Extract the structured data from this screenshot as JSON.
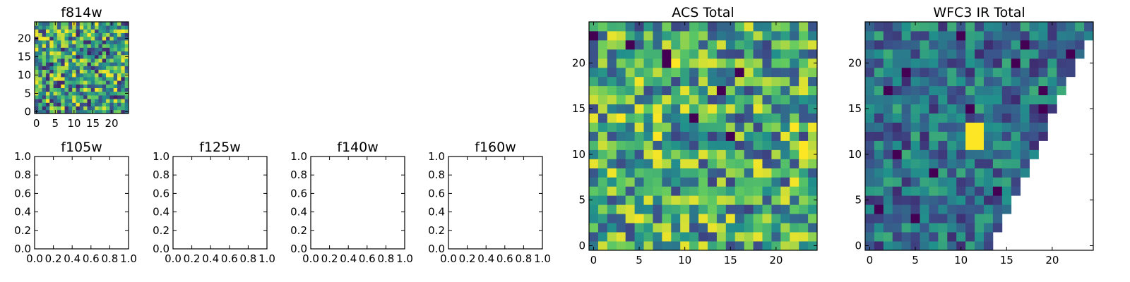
{
  "colormap": "viridis",
  "colormap_stops": [
    "#440154",
    "#3b528b",
    "#21918c",
    "#5ec962",
    "#fde725"
  ],
  "background": "#ffffff",
  "chart_data": [
    {
      "id": "f814w",
      "type": "heatmap",
      "title": "f814w",
      "rows": 25,
      "cols": 25,
      "xlim": [
        -0.5,
        24.5
      ],
      "ylim": [
        -0.5,
        24.5
      ],
      "xticks": [
        0,
        5,
        10,
        15,
        20
      ],
      "yticks": [
        0,
        5,
        10,
        15,
        20
      ],
      "tick_labels_x": [
        "0",
        "5",
        "10",
        "15",
        "20"
      ],
      "tick_labels_y": [
        "0",
        "5",
        "10",
        "15",
        "20"
      ],
      "value_range": [
        0,
        1
      ],
      "pattern": "noise",
      "seed": 11,
      "base": 0.55,
      "spread": 0.45,
      "masked_triangle": false
    },
    {
      "id": "f105w",
      "type": "empty",
      "title": "f105w",
      "xlim": [
        0,
        1
      ],
      "ylim": [
        0,
        1
      ],
      "xticks": [
        0,
        0.2,
        0.4,
        0.6,
        0.8,
        1
      ],
      "yticks": [
        0,
        0.2,
        0.4,
        0.6,
        0.8,
        1
      ],
      "tick_labels_x": [
        "0.0",
        "0.2",
        "0.4",
        "0.6",
        "0.8",
        "1.0"
      ],
      "tick_labels_y": [
        "0.0",
        "0.2",
        "0.4",
        "0.6",
        "0.8",
        "1.0"
      ]
    },
    {
      "id": "f125w",
      "type": "empty",
      "title": "f125w",
      "xlim": [
        0,
        1
      ],
      "ylim": [
        0,
        1
      ],
      "xticks": [
        0,
        0.2,
        0.4,
        0.6,
        0.8,
        1
      ],
      "yticks": [
        0,
        0.2,
        0.4,
        0.6,
        0.8,
        1
      ],
      "tick_labels_x": [
        "0.0",
        "0.2",
        "0.4",
        "0.6",
        "0.8",
        "1.0"
      ],
      "tick_labels_y": [
        "0.0",
        "0.2",
        "0.4",
        "0.6",
        "0.8",
        "1.0"
      ]
    },
    {
      "id": "f140w",
      "type": "empty",
      "title": "f140w",
      "xlim": [
        0,
        1
      ],
      "ylim": [
        0,
        1
      ],
      "xticks": [
        0,
        0.2,
        0.4,
        0.6,
        0.8,
        1
      ],
      "yticks": [
        0,
        0.2,
        0.4,
        0.6,
        0.8,
        1
      ],
      "tick_labels_x": [
        "0.0",
        "0.2",
        "0.4",
        "0.6",
        "0.8",
        "1.0"
      ],
      "tick_labels_y": [
        "0.0",
        "0.2",
        "0.4",
        "0.6",
        "0.8",
        "1.0"
      ]
    },
    {
      "id": "f160w",
      "type": "empty",
      "title": "f160w",
      "xlim": [
        0,
        1
      ],
      "ylim": [
        0,
        1
      ],
      "xticks": [
        0,
        0.2,
        0.4,
        0.6,
        0.8,
        1
      ],
      "yticks": [
        0,
        0.2,
        0.4,
        0.6,
        0.8,
        1
      ],
      "tick_labels_x": [
        "0.0",
        "0.2",
        "0.4",
        "0.6",
        "0.8",
        "1.0"
      ],
      "tick_labels_y": [
        "0.0",
        "0.2",
        "0.4",
        "0.6",
        "0.8",
        "1.0"
      ]
    },
    {
      "id": "acs-total",
      "type": "heatmap",
      "title": "ACS Total",
      "rows": 25,
      "cols": 25,
      "xlim": [
        -0.5,
        24.5
      ],
      "ylim": [
        -0.5,
        24.5
      ],
      "xticks": [
        0,
        5,
        10,
        15,
        20
      ],
      "yticks": [
        0,
        5,
        10,
        15,
        20
      ],
      "tick_labels_x": [
        "0",
        "5",
        "10",
        "15",
        "20"
      ],
      "tick_labels_y": [
        "0",
        "5",
        "10",
        "15",
        "20"
      ],
      "value_range": [
        0,
        1
      ],
      "pattern": "noise",
      "seed": 29,
      "base": 0.6,
      "spread": 0.4,
      "masked_triangle": false,
      "hot_pixels_low": [
        [
          0,
          23
        ],
        [
          8,
          21
        ],
        [
          11,
          14
        ],
        [
          14,
          17
        ],
        [
          16,
          19
        ],
        [
          8,
          20
        ],
        [
          4,
          22
        ],
        [
          15,
          12
        ]
      ],
      "hot_pixels_high": [
        [
          23,
          10
        ],
        [
          23,
          11
        ],
        [
          22,
          13
        ],
        [
          7,
          12
        ],
        [
          3,
          14
        ]
      ]
    },
    {
      "id": "wfc3-ir-total",
      "type": "heatmap",
      "title": "WFC3 IR Total",
      "rows": 25,
      "cols": 25,
      "xlim": [
        -0.5,
        24.5
      ],
      "ylim": [
        -0.5,
        24.5
      ],
      "xticks": [
        0,
        5,
        10,
        15,
        20
      ],
      "yticks": [
        0,
        5,
        10,
        15,
        20
      ],
      "tick_labels_x": [
        "0",
        "5",
        "10",
        "15",
        "20"
      ],
      "tick_labels_y": [
        "0",
        "5",
        "10",
        "15",
        "20"
      ],
      "value_range": [
        0,
        1
      ],
      "pattern": "noise",
      "seed": 47,
      "base": 0.38,
      "spread": 0.25,
      "masked_triangle": true,
      "hot_block": {
        "x": [
          11,
          12
        ],
        "y": [
          11,
          13
        ],
        "value": 1.0
      }
    }
  ]
}
